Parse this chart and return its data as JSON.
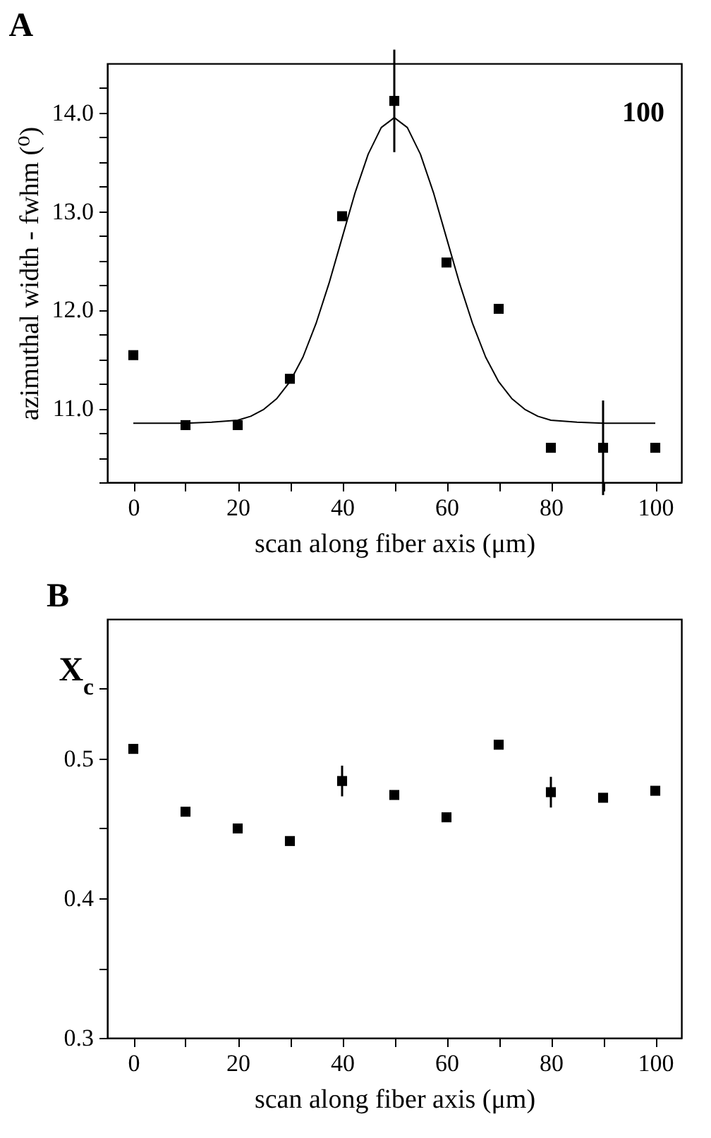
{
  "chart_data": [
    {
      "type": "scatter",
      "title": "A",
      "xlabel": "scan along fiber axis (μm)",
      "ylabel": "azimuthal width - fwhm (⁰)",
      "annotations": [
        "100"
      ],
      "xlim": [
        -5,
        105
      ],
      "ylim": [
        10.25,
        14.5
      ],
      "xticks": [
        0,
        {
          "value": 10,
          "label": null
        },
        20,
        {
          "value": 30,
          "label": null
        },
        40,
        {
          "value": 50,
          "label": null
        },
        60,
        {
          "value": 70,
          "label": null
        },
        80,
        {
          "value": 90,
          "label": null
        },
        100
      ],
      "yticks": [
        {
          "value": 10.25,
          "label": null
        },
        {
          "value": 10.5,
          "label": null
        },
        {
          "value": 10.75,
          "label": null
        },
        {
          "value": 11,
          "label": "11.0"
        },
        {
          "value": 11.25,
          "label": null
        },
        {
          "value": 11.5,
          "label": null
        },
        {
          "value": 11.75,
          "label": null
        },
        {
          "value": 12,
          "label": "12.0"
        },
        {
          "value": 12.25,
          "label": null
        },
        {
          "value": 12.5,
          "label": null
        },
        {
          "value": 12.75,
          "label": null
        },
        {
          "value": 13,
          "label": "13.0"
        },
        {
          "value": 13.25,
          "label": null
        },
        {
          "value": 13.5,
          "label": null
        },
        {
          "value": 13.75,
          "label": null
        },
        {
          "value": 14,
          "label": "14.0"
        },
        {
          "value": 14.25,
          "label": null
        }
      ],
      "grid": false,
      "series": [
        {
          "type": "scatter",
          "marker": "square",
          "color": "#000000",
          "x": [
            0,
            10,
            20,
            30,
            40,
            50,
            60,
            70,
            80,
            90,
            100
          ],
          "values": [
            11.54,
            10.83,
            10.83,
            11.3,
            12.95,
            14.12,
            12.48,
            12.01,
            10.6,
            10.6,
            10.6
          ],
          "errors": [
            null,
            null,
            null,
            null,
            null,
            0.52,
            null,
            null,
            null,
            0.48,
            null
          ]
        },
        {
          "type": "line",
          "marker": "none",
          "color": "#000000",
          "x": [
            0,
            10,
            15,
            20,
            22.5,
            25,
            27.5,
            30,
            32.5,
            35,
            37.5,
            40,
            42.5,
            45,
            47.5,
            50,
            52.5,
            55,
            57.5,
            60,
            62.5,
            65,
            67.5,
            70,
            72.5,
            75,
            77.5,
            80,
            85,
            90,
            100
          ],
          "values": [
            10.85,
            10.85,
            10.86,
            10.88,
            10.92,
            10.99,
            11.1,
            11.27,
            11.52,
            11.86,
            12.27,
            12.73,
            13.19,
            13.58,
            13.85,
            13.95,
            13.85,
            13.58,
            13.19,
            12.73,
            12.27,
            11.86,
            11.52,
            11.27,
            11.1,
            10.99,
            10.92,
            10.88,
            10.86,
            10.85,
            10.85
          ]
        }
      ]
    },
    {
      "type": "scatter",
      "title": "B",
      "xlabel": "scan along fiber axis (μm)",
      "ylabel": "X$_{c}$",
      "xlim": [
        -5,
        105
      ],
      "ylim": [
        0.3,
        0.6
      ],
      "xticks": [
        0,
        {
          "value": 10,
          "label": null
        },
        20,
        {
          "value": 30,
          "label": null
        },
        40,
        {
          "value": 50,
          "label": null
        },
        60,
        {
          "value": 70,
          "label": null
        },
        80,
        {
          "value": 90,
          "label": null
        },
        100
      ],
      "yticks": [
        0.3,
        {
          "value": 0.35,
          "label": null
        },
        0.4,
        {
          "value": 0.45,
          "label": null
        },
        0.5,
        {
          "value": 0.55,
          "label": null
        }
      ],
      "grid": false,
      "marker": "square",
      "series": [
        {
          "type": "scatter",
          "color": "#000000",
          "x": [
            0,
            10,
            20,
            30,
            40,
            50,
            60,
            70,
            80,
            90,
            100
          ],
          "values": [
            0.507,
            0.462,
            0.45,
            0.441,
            0.484,
            0.474,
            0.458,
            0.51,
            0.476,
            0.472,
            0.477
          ],
          "errors": [
            null,
            null,
            null,
            null,
            0.011,
            null,
            null,
            null,
            0.011,
            null,
            null
          ]
        }
      ]
    }
  ]
}
